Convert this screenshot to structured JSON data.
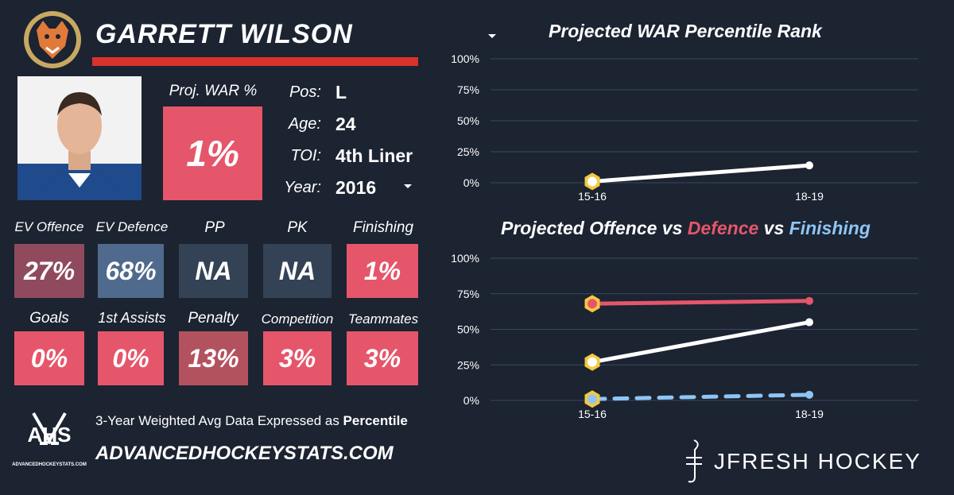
{
  "player": {
    "name": "GARRETT WILSON",
    "proj_war_label": "Proj. WAR %",
    "proj_war_value": "1%",
    "info": [
      {
        "label": "Pos:",
        "value": "L"
      },
      {
        "label": "Age:",
        "value": "24"
      },
      {
        "label": "TOI:",
        "value": "4th Liner"
      },
      {
        "label": "Year:",
        "value": "2016"
      }
    ]
  },
  "stats_row1": [
    {
      "label": "EV Offence",
      "value": "27%",
      "color": "#8f4a5e"
    },
    {
      "label": "EV Defence",
      "value": "68%",
      "color": "#4f6a8c"
    },
    {
      "label": "PP",
      "value": "NA",
      "color": "#344256"
    },
    {
      "label": "PK",
      "value": "NA",
      "color": "#344256"
    },
    {
      "label": "Finishing",
      "value": "1%",
      "color": "#e5566b"
    }
  ],
  "stats_row2": [
    {
      "label": "Goals",
      "value": "0%",
      "color": "#e5566b"
    },
    {
      "label": "1st Assists",
      "value": "0%",
      "color": "#e5566b"
    },
    {
      "label": "Penalty",
      "value": "13%",
      "color": "#b3525f"
    },
    {
      "label": "Competition",
      "value": "3%",
      "color": "#e5566b"
    },
    {
      "label": "Teammates",
      "value": "3%",
      "color": "#e5566b"
    }
  ],
  "footer": {
    "logo_text": "AHS",
    "logo_sub": "ADVANCEDHOCKEYSTATS.COM",
    "desc_prefix": "3-Year Weighted Avg Data Expressed as ",
    "desc_bold": "Percentile",
    "site": "ADVANCEDHOCKEYSTATS.COM",
    "brand": "JFRESH HOCKEY"
  },
  "colors": {
    "background": "#1c2331",
    "accent_red": "#d8322c",
    "defence": "#e5566b",
    "finishing": "#8ec5f5",
    "offence": "#ffffff",
    "highlight": "#f5c842"
  },
  "chart_data": [
    {
      "type": "line",
      "title": "Projected WAR Percentile Rank",
      "categories": [
        "15-16",
        "18-19"
      ],
      "y_ticks": [
        "100%",
        "75%",
        "50%",
        "25%",
        "0%"
      ],
      "ylim": [
        0,
        100
      ],
      "series": [
        {
          "values": [
            1,
            14
          ],
          "color": "#ffffff"
        }
      ]
    },
    {
      "type": "line",
      "title_parts": [
        "Projected Offence vs ",
        "Defence",
        " vs ",
        "Finishing"
      ],
      "categories": [
        "15-16",
        "18-19"
      ],
      "y_ticks": [
        "100%",
        "75%",
        "50%",
        "25%",
        "0%"
      ],
      "ylim": [
        0,
        100
      ],
      "series": [
        {
          "values": [
            68,
            70
          ],
          "color": "#e5566b",
          "dashed": false
        },
        {
          "values": [
            27,
            55
          ],
          "color": "#ffffff",
          "dashed": false
        },
        {
          "values": [
            1,
            4
          ],
          "color": "#8ec5f5",
          "dashed": true
        }
      ]
    }
  ]
}
